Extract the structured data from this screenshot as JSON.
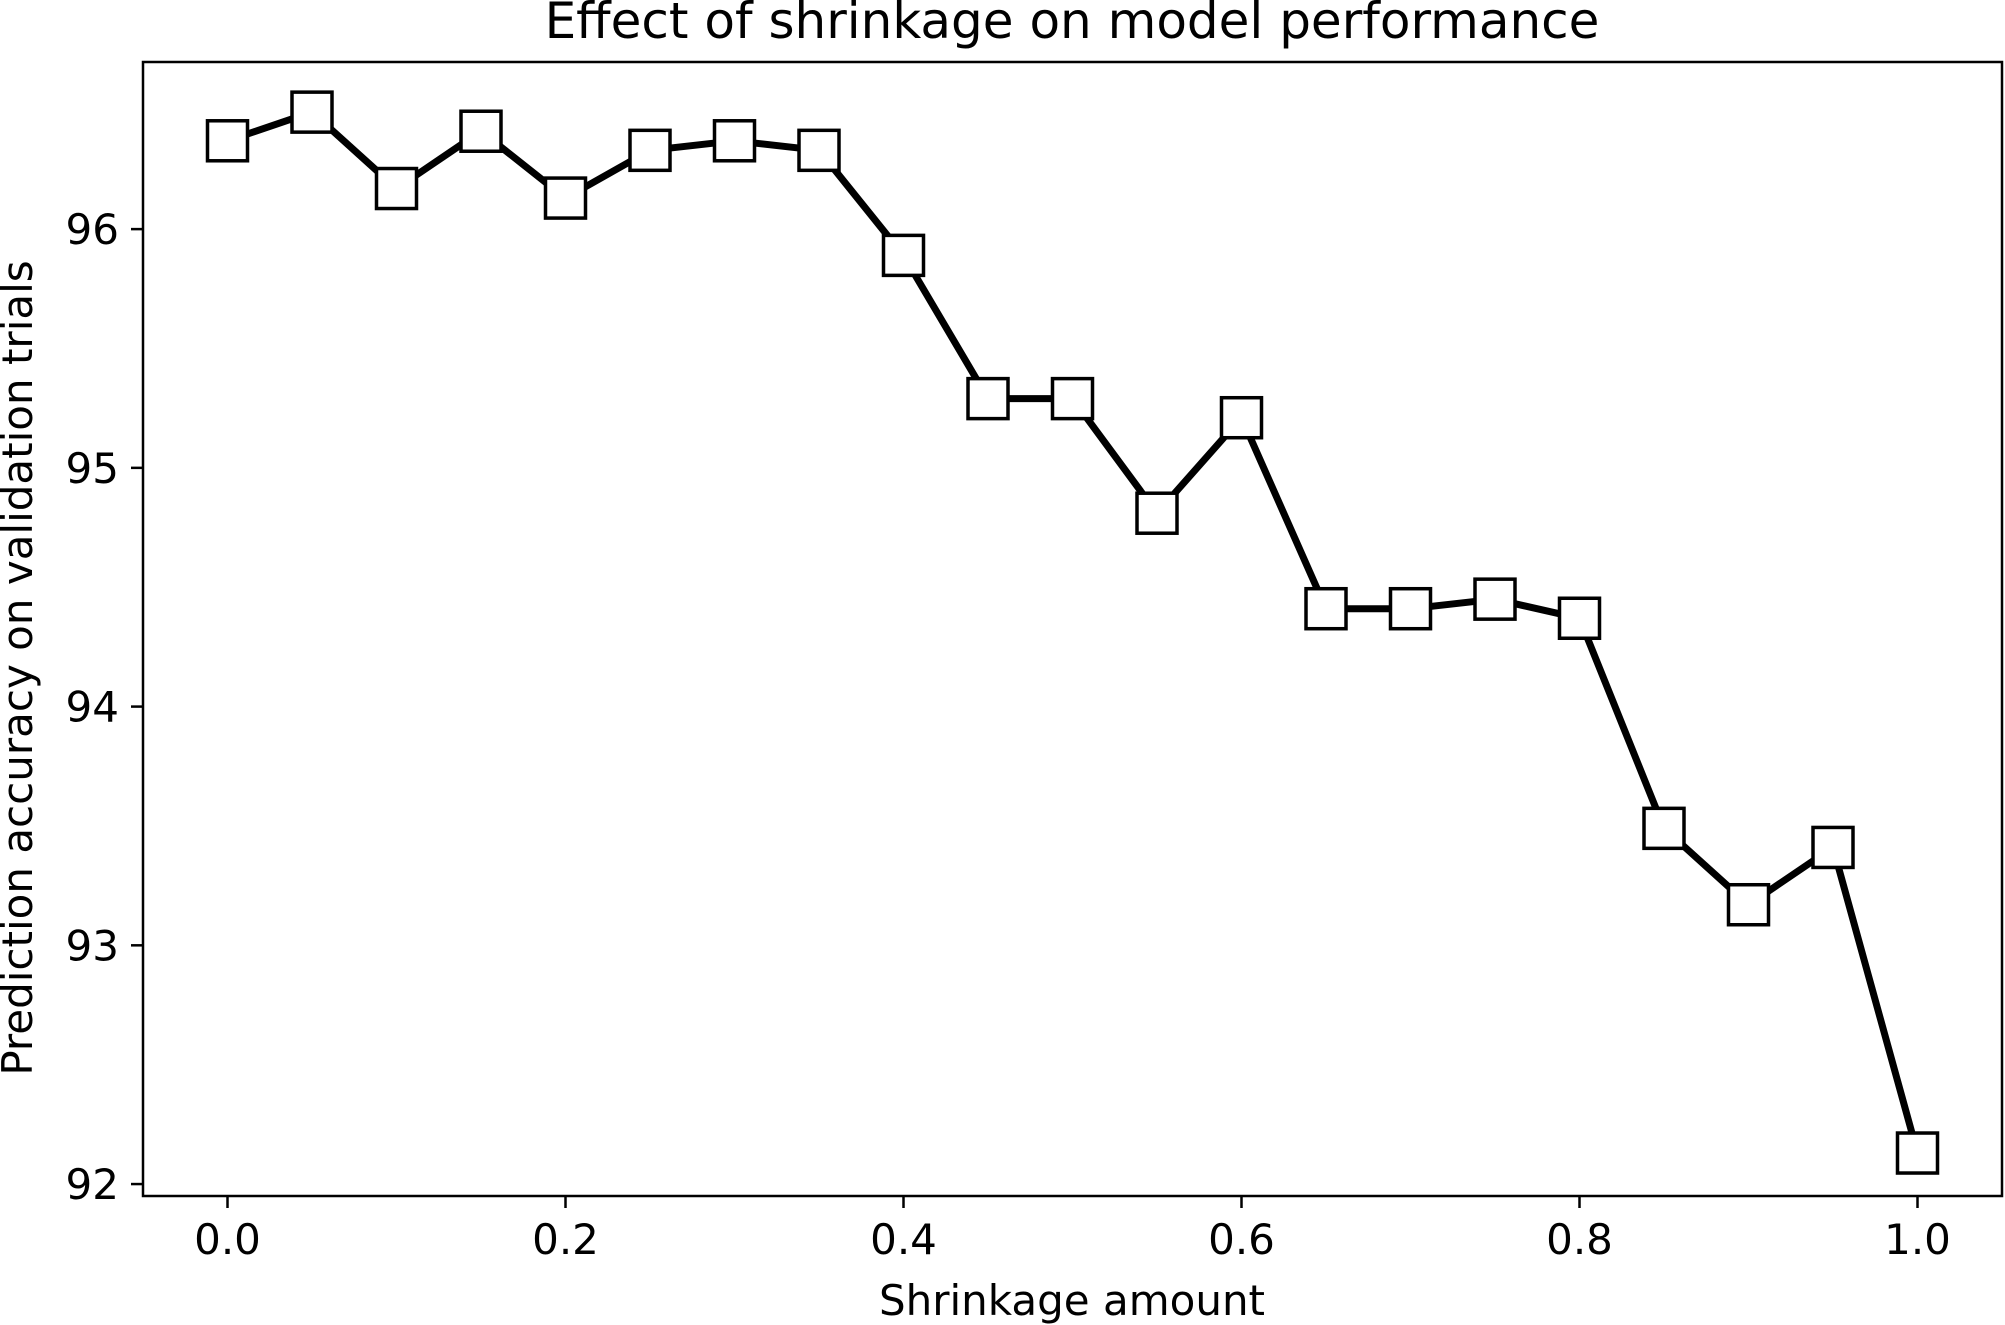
{
  "chart_data": {
    "type": "line",
    "title": "Effect of shrinkage on model performance",
    "xlabel": "Shrinkage amount",
    "ylabel": "Prediction accuracy on validation trials",
    "xlim": [
      -0.05,
      1.05
    ],
    "ylim": [
      91.95,
      96.7
    ],
    "xticks": [
      0.0,
      0.2,
      0.4,
      0.6,
      0.8,
      1.0
    ],
    "xtick_labels": [
      "0.0",
      "0.2",
      "0.4",
      "0.6",
      "0.8",
      "1.0"
    ],
    "yticks": [
      92,
      93,
      94,
      95,
      96
    ],
    "ytick_labels": [
      "92",
      "93",
      "94",
      "95",
      "96"
    ],
    "grid": false,
    "line_color": "#000000",
    "marker": "square",
    "marker_fill": "#ffffff",
    "series": [
      {
        "x": [
          0.0,
          0.05,
          0.1,
          0.15,
          0.2,
          0.25,
          0.3,
          0.35,
          0.4,
          0.45,
          0.5,
          0.55,
          0.6,
          0.65,
          0.7,
          0.75,
          0.8,
          0.85,
          0.9,
          0.95,
          1.0
        ],
        "y": [
          96.37,
          96.49,
          96.17,
          96.41,
          96.13,
          96.33,
          96.37,
          96.33,
          95.89,
          95.29,
          95.29,
          94.81,
          95.21,
          94.41,
          94.41,
          94.45,
          94.37,
          93.49,
          93.17,
          93.41,
          92.13
        ]
      }
    ]
  }
}
